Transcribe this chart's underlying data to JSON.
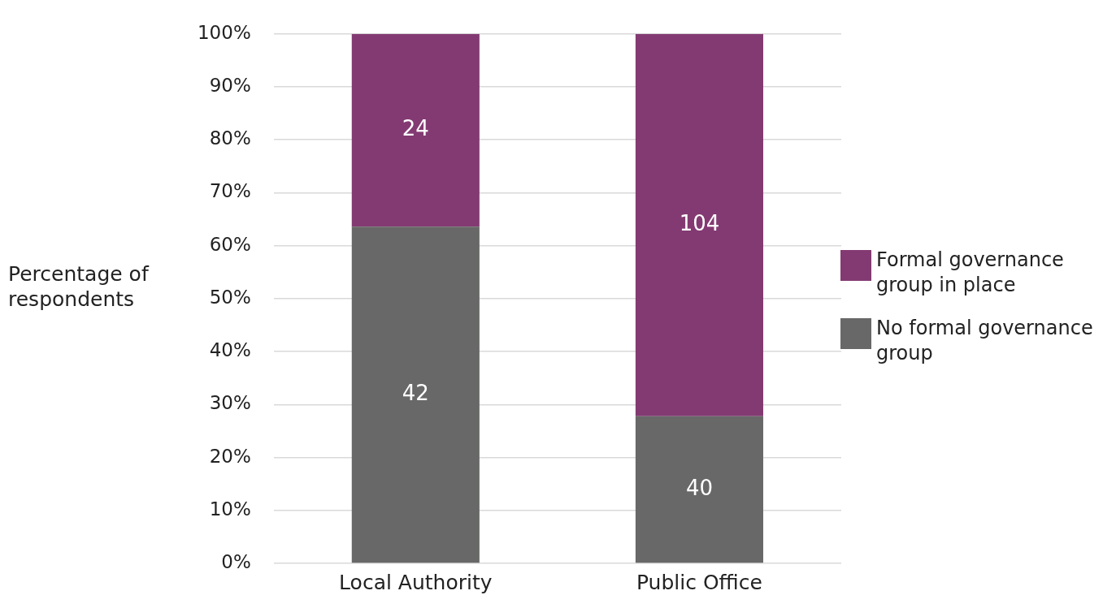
{
  "chart_data": {
    "type": "bar",
    "stacked": true,
    "ylabel": "Percentage of respondents",
    "categories": [
      "Local Authority",
      "Public Office"
    ],
    "series": [
      {
        "name": "No formal governance group",
        "color": "#676867",
        "values": [
          63.6,
          27.8
        ]
      },
      {
        "name": "Formal governance group in place",
        "color": "#833a72",
        "values": [
          36.4,
          72.2
        ]
      }
    ],
    "annotations": [
      "42",
      "40",
      "24",
      "104"
    ],
    "ylim": [
      0,
      100
    ],
    "yticks": [
      {
        "value": 0,
        "label": "0%"
      },
      {
        "value": 10,
        "label": "10%"
      },
      {
        "value": 20,
        "label": "20%"
      },
      {
        "value": 30,
        "label": "30%"
      },
      {
        "value": 40,
        "label": "40%"
      },
      {
        "value": 50,
        "label": "50%"
      },
      {
        "value": 60,
        "label": "60%"
      },
      {
        "value": 70,
        "label": "70%"
      },
      {
        "value": 80,
        "label": "80%"
      },
      {
        "value": 90,
        "label": "90%"
      },
      {
        "value": 100,
        "label": "100%"
      }
    ],
    "grid": "y",
    "legend": "right"
  }
}
